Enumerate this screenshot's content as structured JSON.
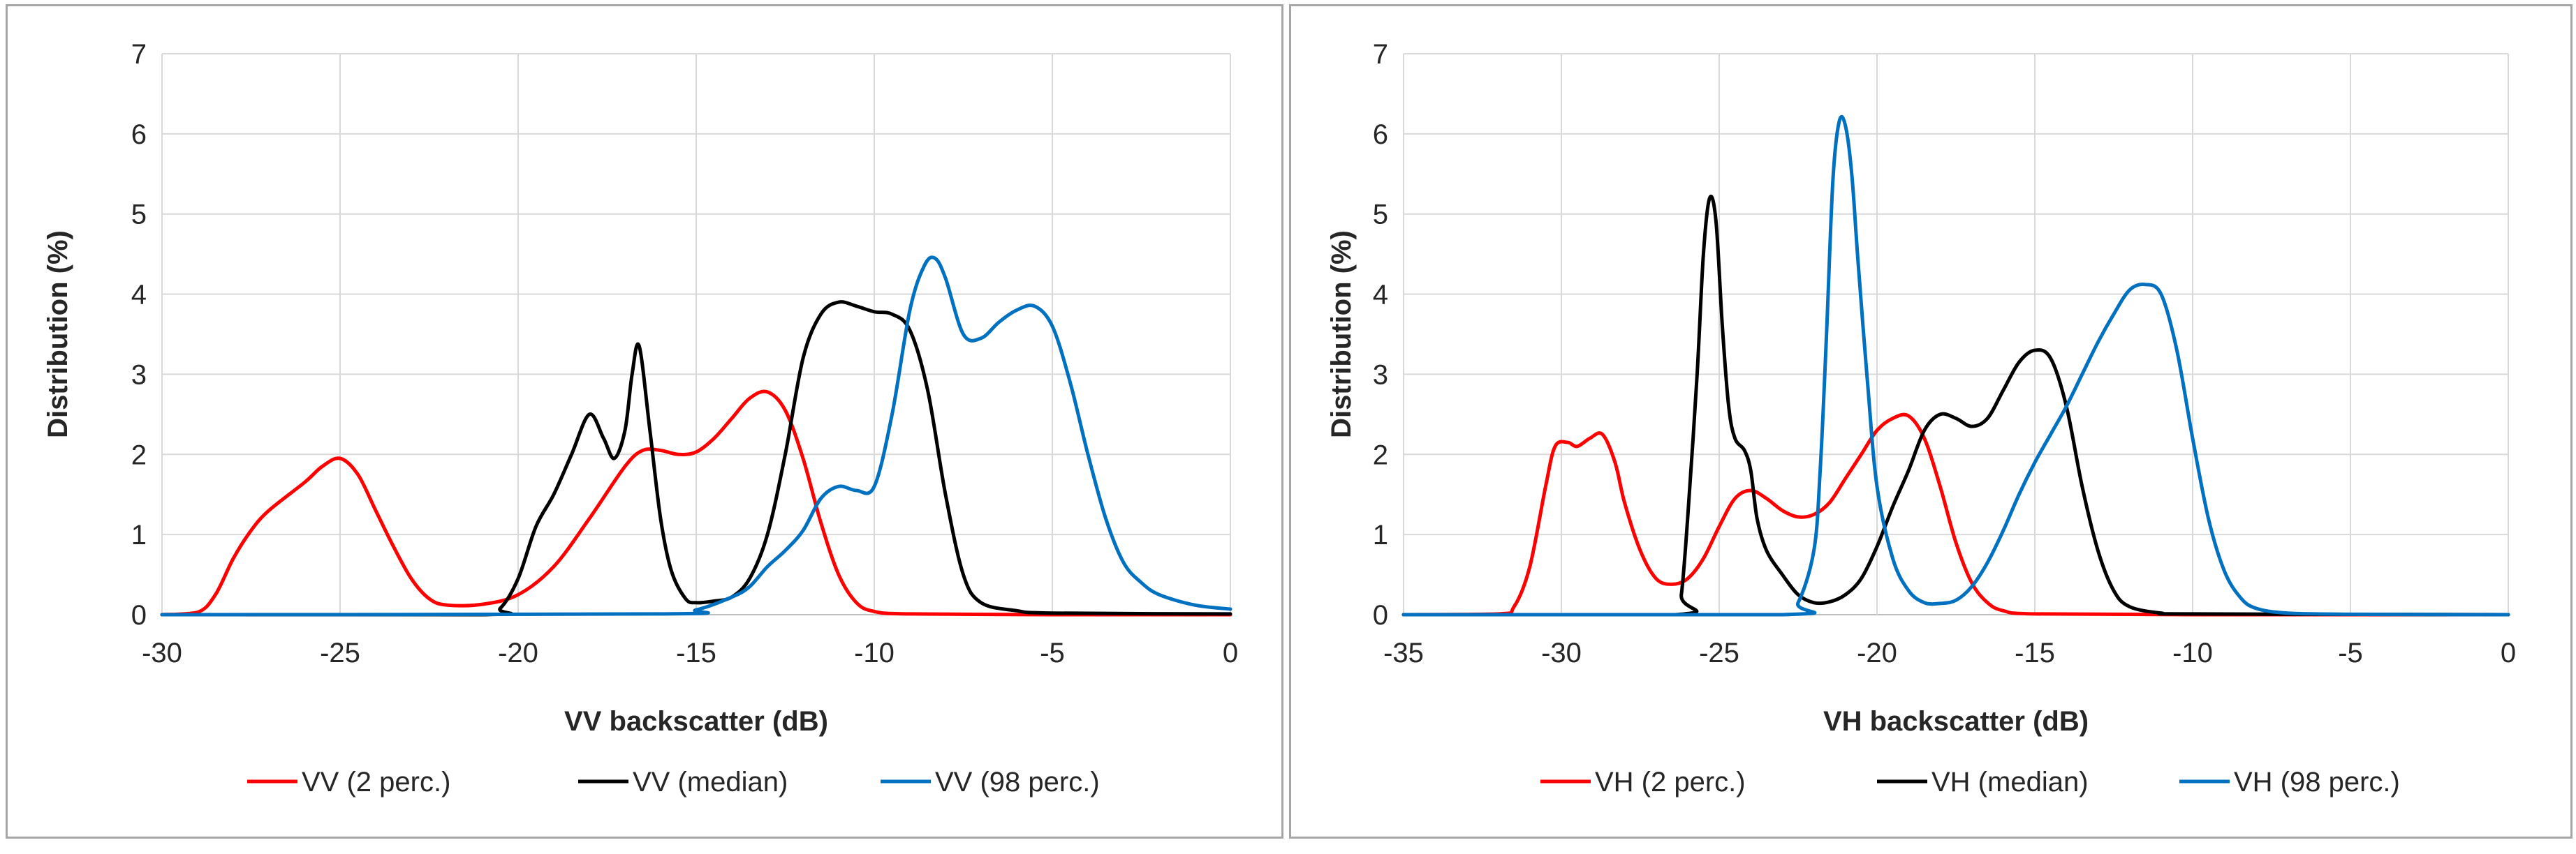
{
  "chart_data": [
    {
      "type": "line",
      "xlabel": "VV backscatter (dB)",
      "ylabel": "Distribution (%)",
      "xlim": [
        -30,
        0
      ],
      "ylim": [
        0,
        7
      ],
      "xticks": [
        -30,
        -25,
        -20,
        -15,
        -10,
        -5,
        0
      ],
      "yticks": [
        0,
        1,
        2,
        3,
        4,
        5,
        6,
        7
      ],
      "grid": true,
      "legend_position": "bottom",
      "series": [
        {
          "name": "VV (2 perc.)",
          "color": "#ff0000",
          "x": [
            -30,
            -29,
            -28.5,
            -28,
            -27.5,
            -27,
            -26,
            -25.5,
            -25,
            -24.5,
            -24,
            -23.5,
            -23,
            -22.5,
            -22,
            -21,
            -20,
            -19,
            -18,
            -17,
            -16.5,
            -16,
            -15.5,
            -15,
            -14.5,
            -14,
            -13.5,
            -13,
            -12.5,
            -12,
            -11.5,
            -11,
            -10.5,
            -10,
            -9,
            -5,
            0
          ],
          "y": [
            0,
            0.03,
            0.25,
            0.7,
            1.05,
            1.3,
            1.65,
            1.85,
            1.95,
            1.75,
            1.3,
            0.85,
            0.45,
            0.2,
            0.12,
            0.13,
            0.25,
            0.6,
            1.2,
            1.85,
            2.05,
            2.05,
            2.0,
            2.03,
            2.2,
            2.45,
            2.7,
            2.78,
            2.55,
            1.95,
            1.15,
            0.5,
            0.15,
            0.04,
            0.01,
            0,
            0
          ]
        },
        {
          "name": "VV (median)",
          "color": "#000000",
          "x": [
            -30,
            -21,
            -20.5,
            -20,
            -19.5,
            -19,
            -18.5,
            -18,
            -17.6,
            -17.3,
            -17,
            -16.8,
            -16.6,
            -16.3,
            -16,
            -15.7,
            -15.3,
            -15,
            -14.5,
            -14,
            -13.5,
            -13,
            -12.5,
            -12,
            -11.5,
            -11,
            -10.5,
            -10,
            -9.5,
            -9,
            -8.5,
            -8,
            -7.5,
            -7,
            -6,
            -5,
            0
          ],
          "y": [
            0,
            0,
            0.08,
            0.45,
            1.1,
            1.5,
            2.0,
            2.5,
            2.2,
            1.95,
            2.3,
            3.0,
            3.35,
            2.3,
            1.2,
            0.55,
            0.2,
            0.15,
            0.17,
            0.22,
            0.45,
            1.0,
            2.0,
            3.2,
            3.75,
            3.9,
            3.85,
            3.78,
            3.75,
            3.55,
            2.8,
            1.5,
            0.5,
            0.15,
            0.05,
            0.02,
            0.01
          ]
        },
        {
          "name": "VV (98 perc.)",
          "color": "#0070c0",
          "x": [
            -30,
            -16,
            -15,
            -14,
            -13.5,
            -13,
            -12.5,
            -12,
            -11.5,
            -11,
            -10.5,
            -10,
            -9.5,
            -9,
            -8.6,
            -8.3,
            -8,
            -7.5,
            -7,
            -6.5,
            -6,
            -5.5,
            -5,
            -4.5,
            -4,
            -3.5,
            -3,
            -2.5,
            -2,
            -1,
            0
          ],
          "y": [
            0,
            0.01,
            0.06,
            0.22,
            0.35,
            0.6,
            0.8,
            1.05,
            1.45,
            1.6,
            1.55,
            1.6,
            2.5,
            3.8,
            4.35,
            4.45,
            4.2,
            3.5,
            3.45,
            3.65,
            3.8,
            3.85,
            3.6,
            2.9,
            2.0,
            1.2,
            0.65,
            0.4,
            0.25,
            0.12,
            0.07
          ]
        }
      ],
      "legend": [
        "VV (2 perc.)",
        "VV (median)",
        "VV (98 perc.)"
      ]
    },
    {
      "type": "line",
      "xlabel": "VH backscatter (dB)",
      "ylabel": "Distribution (%)",
      "xlim": [
        -35,
        0
      ],
      "ylim": [
        0,
        7
      ],
      "xticks": [
        -35,
        -30,
        -25,
        -20,
        -15,
        -10,
        -5,
        0
      ],
      "yticks": [
        0,
        1,
        2,
        3,
        4,
        5,
        6,
        7
      ],
      "grid": true,
      "legend_position": "bottom",
      "series": [
        {
          "name": "VH (2 perc.)",
          "color": "#ff0000",
          "x": [
            -35,
            -32,
            -31.5,
            -31,
            -30.5,
            -30.2,
            -29.8,
            -29.5,
            -29.1,
            -28.7,
            -28.3,
            -28,
            -27.5,
            -27,
            -26.5,
            -26,
            -25.5,
            -25,
            -24.5,
            -24,
            -23.5,
            -23,
            -22.5,
            -22,
            -21.5,
            -21,
            -20.5,
            -20,
            -19.5,
            -19,
            -18.5,
            -18,
            -17.5,
            -17,
            -16.5,
            -16,
            -15,
            -10,
            0
          ],
          "y": [
            0,
            0.01,
            0.1,
            0.6,
            1.6,
            2.1,
            2.15,
            2.1,
            2.2,
            2.25,
            1.9,
            1.4,
            0.8,
            0.45,
            0.38,
            0.45,
            0.7,
            1.1,
            1.45,
            1.55,
            1.45,
            1.3,
            1.22,
            1.25,
            1.4,
            1.7,
            2.0,
            2.3,
            2.45,
            2.48,
            2.2,
            1.6,
            0.9,
            0.4,
            0.15,
            0.05,
            0.01,
            0,
            0
          ]
        },
        {
          "name": "VH (median)",
          "color": "#000000",
          "x": [
            -35,
            -26.4,
            -26.2,
            -26,
            -25.7,
            -25.5,
            -25.3,
            -25.1,
            -24.9,
            -24.7,
            -24.5,
            -24.2,
            -24,
            -23.8,
            -23.5,
            -23,
            -22.5,
            -22,
            -21.5,
            -21,
            -20.5,
            -20,
            -19.5,
            -19,
            -18.5,
            -18,
            -17.5,
            -17,
            -16.5,
            -16,
            -15.5,
            -15,
            -14.5,
            -14,
            -13.5,
            -13,
            -12.5,
            -12,
            -11,
            -10,
            0
          ],
          "y": [
            0,
            0,
            0.25,
            1.2,
            3.0,
            4.5,
            5.2,
            4.9,
            3.6,
            2.6,
            2.2,
            2.05,
            1.8,
            1.2,
            0.8,
            0.5,
            0.25,
            0.15,
            0.16,
            0.25,
            0.45,
            0.85,
            1.35,
            1.8,
            2.3,
            2.5,
            2.45,
            2.35,
            2.45,
            2.8,
            3.15,
            3.3,
            3.2,
            2.6,
            1.6,
            0.8,
            0.3,
            0.1,
            0.02,
            0.01,
            0
          ]
        },
        {
          "name": "VH (98 perc.)",
          "color": "#0070c0",
          "x": [
            -35,
            -23,
            -22.5,
            -22,
            -21.8,
            -21.6,
            -21.4,
            -21.2,
            -21,
            -20.8,
            -20.6,
            -20.3,
            -20,
            -19.5,
            -19,
            -18.5,
            -18,
            -17.5,
            -17,
            -16.5,
            -16,
            -15.5,
            -15,
            -14.5,
            -14,
            -13.5,
            -13,
            -12.5,
            -12,
            -11.5,
            -11,
            -10.5,
            -10,
            -9.5,
            -9,
            -8.5,
            -8,
            -7,
            -5,
            0
          ],
          "y": [
            0,
            0,
            0.15,
            0.8,
            1.8,
            3.5,
            5.4,
            6.15,
            6.1,
            5.5,
            4.4,
            2.9,
            1.6,
            0.7,
            0.3,
            0.15,
            0.14,
            0.18,
            0.35,
            0.65,
            1.05,
            1.5,
            1.9,
            2.25,
            2.6,
            3.0,
            3.4,
            3.75,
            4.05,
            4.12,
            4.0,
            3.3,
            2.2,
            1.2,
            0.55,
            0.22,
            0.08,
            0.02,
            0.005,
            0
          ]
        }
      ],
      "legend": [
        "VH (2 perc.)",
        "VH (median)",
        "VH (98 perc.)"
      ]
    }
  ]
}
